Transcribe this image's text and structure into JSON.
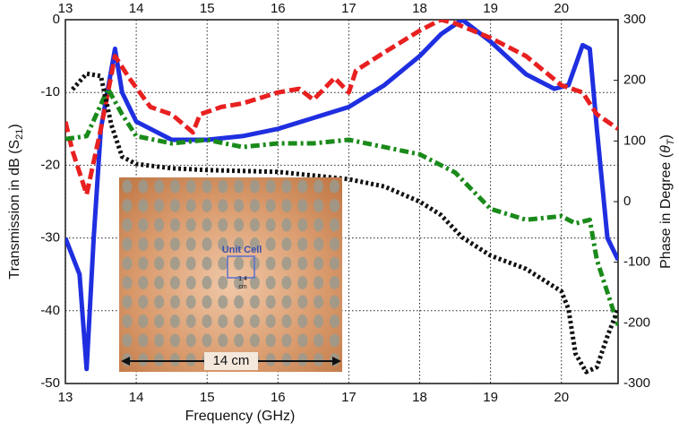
{
  "chart_data": {
    "type": "line",
    "xlabel": "Frequency (GHz)",
    "ylabel": {
      "text": "Transmission in dB (S",
      "sub": "21",
      "end": ")"
    },
    "y2label": {
      "text": "Phase in Degree (",
      "symbol": "θ",
      "sub": "T",
      "end": ")"
    },
    "xlim": [
      13,
      20.8
    ],
    "xticks": [
      13,
      14,
      15,
      16,
      17,
      18,
      19,
      20
    ],
    "ylim": [
      -50,
      0
    ],
    "yticks": [
      -50,
      -40,
      -30,
      -20,
      -10,
      0
    ],
    "y2lim": [
      -300,
      300
    ],
    "y2ticks": [
      -300,
      -200,
      -100,
      0,
      100,
      200,
      300
    ],
    "grid": true,
    "series": [
      {
        "color": "#1f2fe0",
        "style": "solid",
        "x": [
          13,
          13.2,
          13.3,
          13.4,
          13.5,
          13.7,
          13.8,
          14,
          14.5,
          15,
          15.5,
          16,
          16.5,
          17,
          17.5,
          18,
          18.3,
          18.6,
          19,
          19.5,
          19.9,
          20.1,
          20.3,
          20.4,
          20.5,
          20.65,
          20.8
        ],
        "values": [
          -30,
          -35,
          -48,
          -30,
          -15,
          -4,
          -10,
          -14,
          -16.5,
          -16.5,
          -16,
          -15,
          -13.5,
          -12,
          -9,
          -5,
          -2,
          0,
          -3,
          -7.5,
          -9.5,
          -9,
          -3.5,
          -4,
          -15,
          -30,
          -33
        ]
      },
      {
        "color": "#e82020",
        "style": "dash",
        "x": [
          13,
          13.1,
          13.3,
          13.5,
          13.7,
          13.9,
          14.2,
          14.5,
          14.8,
          14.9,
          15.2,
          15.5,
          16,
          16.3,
          16.5,
          16.8,
          17,
          17.1,
          17.5,
          18,
          18.3,
          18.5,
          19,
          19.5,
          20,
          20.3,
          20.5,
          20.8
        ],
        "values": [
          -14,
          -18,
          -24,
          -15,
          -5,
          -8,
          -12,
          -13,
          -15.5,
          -13,
          -12,
          -11.5,
          -10,
          -9.5,
          -11,
          -8,
          -10,
          -7,
          -4.5,
          -1.5,
          0,
          -0.5,
          -2.5,
          -5,
          -9,
          -10,
          -13,
          -15
        ]
      },
      {
        "color": "#1a8a1a",
        "style": "dashdot",
        "x": [
          13,
          13.3,
          13.6,
          13.8,
          14,
          14.5,
          15,
          15.5,
          16,
          16.5,
          17,
          17.5,
          18,
          18.5,
          19,
          19.5,
          20,
          20.2,
          20.4,
          20.5,
          20.8
        ],
        "values": [
          -16.4,
          -16,
          -9.5,
          -13,
          -16,
          -17,
          -16.5,
          -17.5,
          -17,
          -17,
          -16.5,
          -17.5,
          -18.5,
          -21,
          -26,
          -27.5,
          -27,
          -28,
          -27.5,
          -33,
          -42
        ]
      },
      {
        "color": "#111111",
        "style": "dot",
        "axis": "y2",
        "x": [
          13.1,
          13.3,
          13.5,
          13.65,
          13.8,
          14,
          14.5,
          15,
          16,
          17,
          17.5,
          18,
          18.3,
          18.6,
          19,
          19.5,
          20,
          20.1,
          20.2,
          20.35,
          20.5,
          20.65,
          20.8
        ],
        "values": [
          185,
          211,
          207,
          126,
          74,
          62,
          55,
          52,
          49,
          37,
          25,
          0,
          -22,
          -59,
          -89,
          -111,
          -148,
          -177,
          -251,
          -281,
          -273,
          -222,
          -177
        ]
      }
    ],
    "inset": {
      "unit_label": "Unit Cell",
      "cell_size": "1.4",
      "cell_unit": "cm",
      "width_label": "14 cm"
    }
  }
}
